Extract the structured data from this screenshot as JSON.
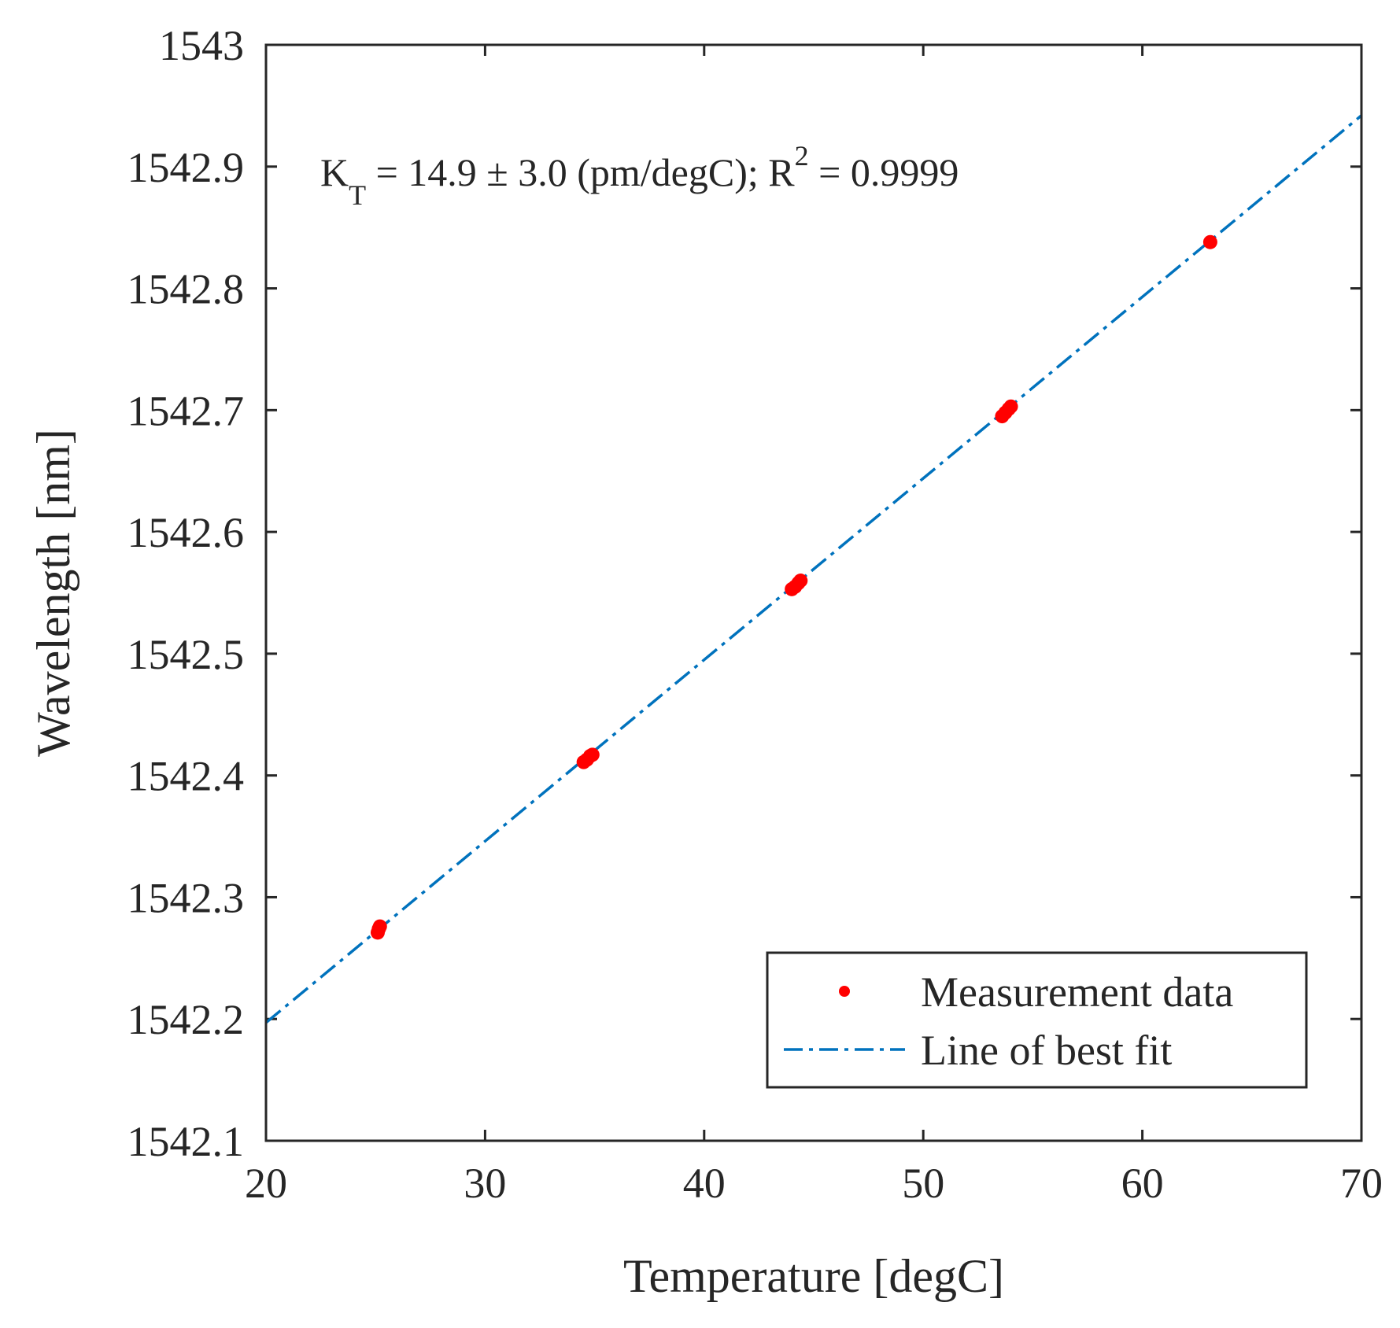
{
  "chart_data": {
    "type": "scatter",
    "xlabel": "Temperature [degC]",
    "ylabel": "Wavelength [nm]",
    "xlim": [
      20,
      70
    ],
    "ylim": [
      1542.1,
      1543
    ],
    "xticks": [
      "20",
      "30",
      "40",
      "50",
      "60",
      "70"
    ],
    "yticks": [
      "1542.1",
      "1542.2",
      "1542.3",
      "1542.4",
      "1542.5",
      "1542.6",
      "1542.7",
      "1542.8",
      "1542.9",
      "1543"
    ],
    "grid": false,
    "annotation": {
      "k": "K",
      "k_sub": "T",
      "middle": " = 14.9 ± 3.0 (pm/degC); R",
      "r_sup": "2",
      "end": " = 0.9999"
    },
    "legend": {
      "position": "bottom-right",
      "entries": [
        "Measurement data",
        "Line of best fit"
      ]
    },
    "series": [
      {
        "name": "Measurement data",
        "style": "markers",
        "color": "#ff0000",
        "points": [
          [
            25.1,
            1542.271
          ],
          [
            25.15,
            1542.274
          ],
          [
            25.2,
            1542.276
          ],
          [
            34.5,
            1542.411
          ],
          [
            34.65,
            1542.413
          ],
          [
            34.8,
            1542.416
          ],
          [
            34.9,
            1542.417
          ],
          [
            44.0,
            1542.553
          ],
          [
            44.15,
            1542.555
          ],
          [
            44.3,
            1542.558
          ],
          [
            44.4,
            1542.56
          ],
          [
            53.6,
            1542.695
          ],
          [
            53.75,
            1542.698
          ],
          [
            53.9,
            1542.701
          ],
          [
            54.0,
            1542.703
          ],
          [
            63.1,
            1542.838
          ]
        ]
      },
      {
        "name": "Line of best fit",
        "style": "dash-dot",
        "color": "#0072bd",
        "points": [
          [
            20,
            1542.197
          ],
          [
            70,
            1542.942
          ]
        ]
      }
    ]
  }
}
